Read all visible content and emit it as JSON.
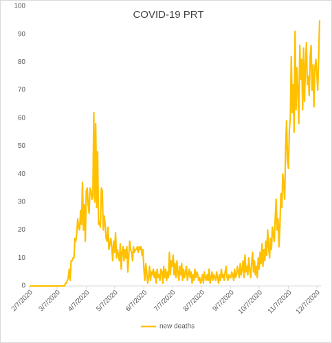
{
  "chart_data": {
    "type": "line",
    "title": "COVID-19 PRT",
    "categories": [
      "2/7/2020",
      null,
      null,
      null,
      null,
      null,
      null,
      null,
      null,
      null,
      null,
      null,
      null,
      null,
      null,
      null,
      null,
      null,
      null,
      null,
      null,
      null,
      null,
      null,
      null,
      null,
      null,
      null,
      null,
      "3/7/2020",
      null,
      null,
      null,
      null,
      null,
      null,
      null,
      null,
      null,
      null,
      null,
      null,
      null,
      null,
      null,
      null,
      null,
      null,
      null,
      null,
      null,
      null,
      null,
      null,
      null,
      null,
      null,
      null,
      null,
      null,
      "4/7/2020",
      null,
      null,
      null,
      null,
      null,
      null,
      null,
      null,
      null,
      null,
      null,
      null,
      null,
      null,
      null,
      null,
      null,
      null,
      null,
      null,
      null,
      null,
      null,
      null,
      null,
      null,
      null,
      null,
      null,
      "5/7/2020",
      null,
      null,
      null,
      null,
      null,
      null,
      null,
      null,
      null,
      null,
      null,
      null,
      null,
      null,
      null,
      null,
      null,
      null,
      null,
      null,
      null,
      null,
      null,
      null,
      null,
      null,
      null,
      null,
      null,
      null,
      "6/7/2020",
      null,
      null,
      null,
      null,
      null,
      null,
      null,
      null,
      null,
      null,
      null,
      null,
      null,
      null,
      null,
      null,
      null,
      null,
      null,
      null,
      null,
      null,
      null,
      null,
      null,
      null,
      null,
      null,
      null,
      "7/7/2020",
      null,
      null,
      null,
      null,
      null,
      null,
      null,
      null,
      null,
      null,
      null,
      null,
      null,
      null,
      null,
      null,
      null,
      null,
      null,
      null,
      null,
      null,
      null,
      null,
      null,
      null,
      null,
      null,
      null,
      null,
      "8/7/2020",
      null,
      null,
      null,
      null,
      null,
      null,
      null,
      null,
      null,
      null,
      null,
      null,
      null,
      null,
      null,
      null,
      null,
      null,
      null,
      null,
      null,
      null,
      null,
      null,
      null,
      null,
      null,
      null,
      null,
      null,
      "9/7/2020",
      null,
      null,
      null,
      null,
      null,
      null,
      null,
      null,
      null,
      null,
      null,
      null,
      null,
      null,
      null,
      null,
      null,
      null,
      null,
      null,
      null,
      null,
      null,
      null,
      null,
      null,
      null,
      null,
      null,
      "10/7/2020",
      null,
      null,
      null,
      null,
      null,
      null,
      null,
      null,
      null,
      null,
      null,
      null,
      null,
      null,
      null,
      null,
      null,
      null,
      null,
      null,
      null,
      null,
      null,
      null,
      null,
      null,
      null,
      null,
      null,
      null,
      "11/7/2020",
      null,
      null,
      null,
      null,
      null,
      null,
      null,
      null,
      null,
      null,
      null,
      null,
      null,
      null,
      null,
      null,
      null,
      null,
      null,
      null,
      null,
      null,
      null,
      null,
      null,
      null,
      null,
      null,
      null,
      "12/7/2020",
      null,
      null,
      null
    ],
    "series": [
      {
        "name": "new deaths",
        "color": "#FFC000",
        "values": [
          0,
          0,
          0,
          0,
          0,
          0,
          0,
          0,
          0,
          0,
          0,
          0,
          0,
          0,
          0,
          0,
          0,
          0,
          0,
          0,
          0,
          0,
          0,
          0,
          0,
          0,
          0,
          0,
          0,
          0,
          0,
          0,
          0,
          0,
          0,
          0,
          0,
          0,
          1,
          1,
          2,
          3,
          6,
          2,
          9,
          9,
          10,
          10,
          17,
          16,
          19,
          24,
          21,
          20,
          27,
          22,
          37,
          20,
          29,
          16,
          34,
          35,
          29,
          26,
          35,
          34,
          31,
          32,
          62,
          30,
          58,
          28,
          48,
          22,
          23,
          21,
          35,
          34,
          20,
          25,
          22,
          17,
          16,
          21,
          13,
          15,
          17,
          14,
          9,
          16,
          12,
          19,
          10,
          13,
          11,
          9,
          15,
          6,
          12,
          14,
          9,
          13,
          10,
          14,
          5,
          11,
          16,
          13,
          12,
          9,
          14,
          12,
          13,
          13,
          14,
          12,
          14,
          13,
          14,
          11,
          13,
          6,
          2,
          8,
          5,
          1,
          3,
          7,
          2,
          5,
          4,
          6,
          3,
          5,
          1,
          6,
          3,
          4,
          2,
          6,
          5,
          1,
          7,
          3,
          6,
          2,
          5,
          3,
          12,
          4,
          9,
          7,
          11,
          4,
          8,
          3,
          9,
          5,
          2,
          7,
          4,
          8,
          2,
          6,
          3,
          5,
          7,
          2,
          4,
          6,
          3,
          5,
          1,
          4,
          2,
          6,
          3,
          5,
          4,
          2,
          3,
          1,
          2,
          4,
          1,
          5,
          3,
          2,
          4,
          2,
          6,
          1,
          3,
          5,
          2,
          4,
          3,
          2,
          5,
          3,
          1,
          4,
          2,
          6,
          3,
          4,
          2,
          5,
          7,
          3,
          2,
          4,
          3,
          3,
          5,
          4,
          2,
          6,
          3,
          4,
          7,
          5,
          3,
          8,
          4,
          6,
          9,
          3,
          11,
          5,
          7,
          4,
          10,
          6,
          3,
          8,
          12,
          5,
          9,
          4,
          7,
          3,
          10,
          6,
          12,
          8,
          15,
          7,
          13,
          9,
          16,
          11,
          20,
          14,
          10,
          17,
          13,
          21,
          18,
          16,
          24,
          31,
          20,
          24,
          14,
          22,
          33,
          28,
          40,
          36,
          31,
          49,
          59,
          45,
          42,
          56,
          60,
          82,
          62,
          72,
          55,
          91,
          63,
          78,
          70,
          58,
          86,
          74,
          81,
          63,
          85,
          66,
          79,
          87,
          72,
          75,
          68,
          82,
          86,
          70,
          79,
          64,
          78,
          81,
          76,
          70,
          82,
          95
        ]
      }
    ],
    "ylim": [
      0,
      100
    ],
    "yticks": [
      0,
      10,
      20,
      30,
      40,
      50,
      60,
      70,
      80,
      90,
      100
    ],
    "grid": false,
    "legend": "bottom"
  }
}
